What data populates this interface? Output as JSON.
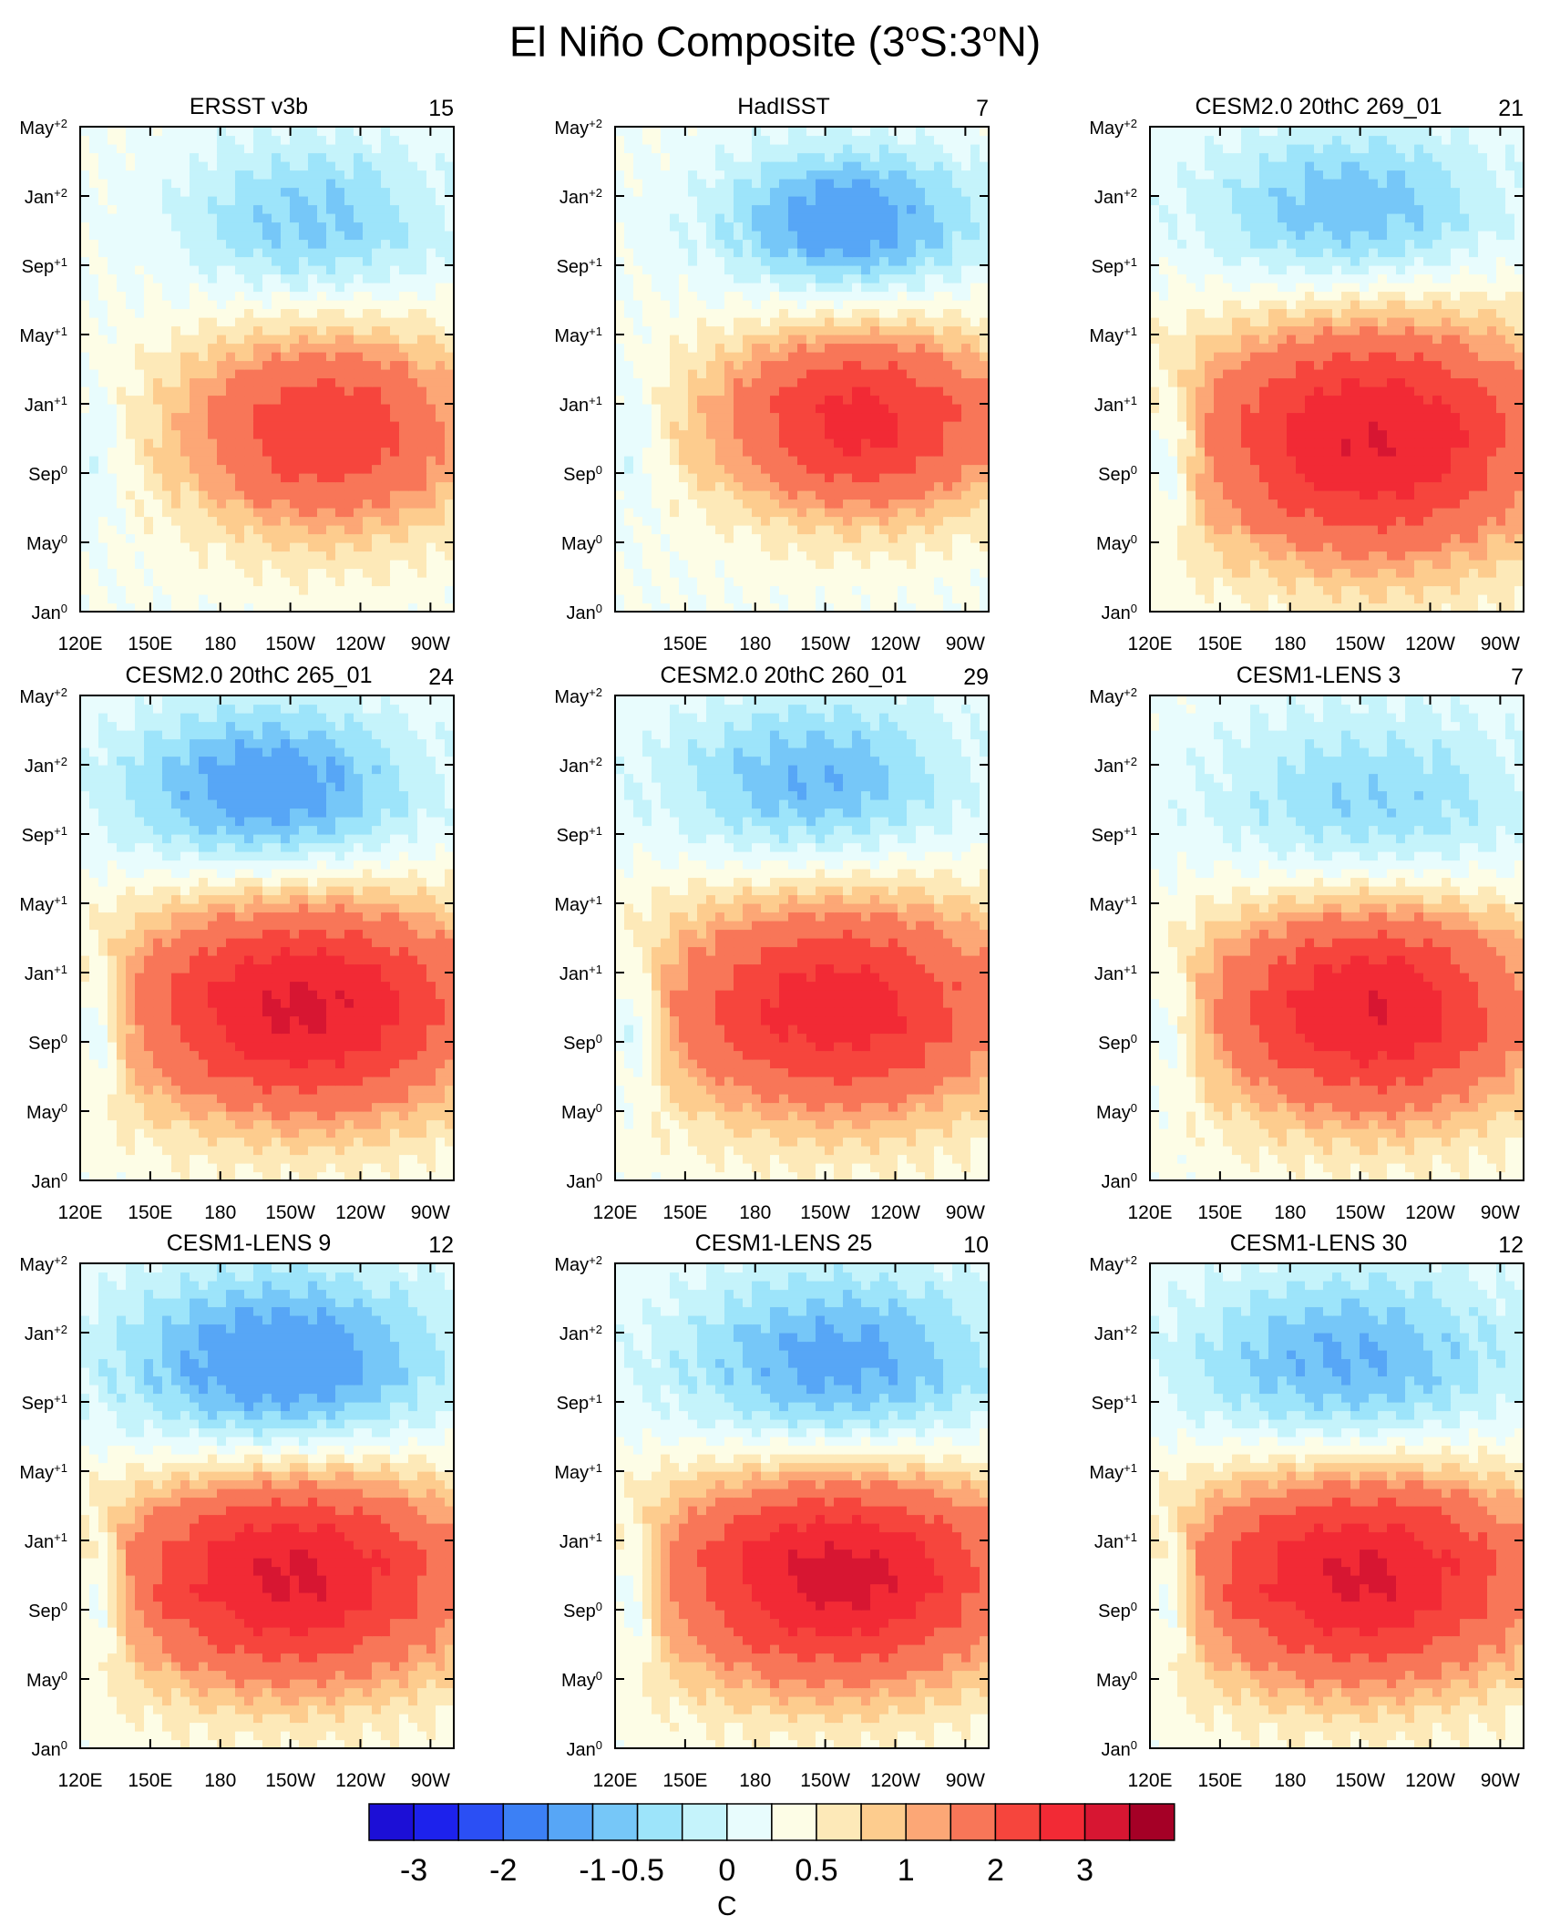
{
  "title": {
    "prefix": "El Niño Composite (3",
    "deg1": "o",
    "mid": "S:3",
    "deg2": "o",
    "suffix": "N)"
  },
  "chart_data": {
    "type": "heatmap",
    "x_tick_labels": [
      "120E",
      "150E",
      "180",
      "150W",
      "120W",
      "90W"
    ],
    "x_tick_degrees_east": [
      120,
      150,
      180,
      210,
      240,
      270
    ],
    "x_range_degrees_east": [
      120,
      280
    ],
    "y_ticks": [
      {
        "month": "Jan",
        "sup": "0"
      },
      {
        "month": "May",
        "sup": "0"
      },
      {
        "month": "Sep",
        "sup": "0"
      },
      {
        "month": "Jan",
        "sup": "+1"
      },
      {
        "month": "May",
        "sup": "+1"
      },
      {
        "month": "Sep",
        "sup": "+1"
      },
      {
        "month": "Jan",
        "sup": "+2"
      },
      {
        "month": "May",
        "sup": "+2"
      }
    ],
    "y_range_months": [
      0,
      28
    ],
    "panels": [
      {
        "name": "ERSST v3b",
        "count": "15",
        "show_120E": true,
        "warm": {
          "amp": 1.9,
          "lon": 225,
          "month": 10.5,
          "sx": 45,
          "sy": 4.2
        },
        "cold": {
          "amp": -0.85,
          "lon": 220,
          "month": 22.5,
          "sx": 40,
          "sy": 3.5
        },
        "west": {
          "amp": -0.35,
          "month": 9
        }
      },
      {
        "name": "HadISST",
        "count": "7",
        "show_120E": false,
        "warm": {
          "amp": 2.2,
          "lon": 225,
          "month": 11,
          "sx": 45,
          "sy": 3.8
        },
        "cold": {
          "amp": -1.3,
          "lon": 220,
          "month": 22.5,
          "sx": 38,
          "sy": 3.0
        },
        "west": {
          "amp": -0.4,
          "month": 10
        }
      },
      {
        "name": "CESM2.0 20thC 269_01",
        "count": "21",
        "show_120E": true,
        "warm": {
          "amp": 2.5,
          "lon": 215,
          "month": 10,
          "sx": 55,
          "sy": 5.0
        },
        "cold": {
          "amp": -1.0,
          "lon": 205,
          "month": 23,
          "sx": 45,
          "sy": 3.5
        },
        "west": {
          "amp": -0.8,
          "month": 9
        }
      },
      {
        "name": "CESM2.0 20thC 265_01",
        "count": "24",
        "show_120E": true,
        "warm": {
          "amp": 2.6,
          "lon": 215,
          "month": 10,
          "sx": 55,
          "sy": 4.5
        },
        "cold": {
          "amp": -1.3,
          "lon": 200,
          "month": 22.5,
          "sx": 45,
          "sy": 3.5
        },
        "west": {
          "amp": -0.8,
          "month": 9
        }
      },
      {
        "name": "CESM2.0 20thC 260_01",
        "count": "29",
        "show_120E": true,
        "warm": {
          "amp": 2.3,
          "lon": 215,
          "month": 10,
          "sx": 55,
          "sy": 4.5
        },
        "cold": {
          "amp": -1.0,
          "lon": 205,
          "month": 23,
          "sx": 45,
          "sy": 3.5
        },
        "west": {
          "amp": -0.8,
          "month": 9
        }
      },
      {
        "name": "CESM1-LENS 3",
        "count": "7",
        "show_120E": true,
        "warm": {
          "amp": 2.5,
          "lon": 215,
          "month": 10,
          "sx": 50,
          "sy": 4.5
        },
        "cold": {
          "amp": -0.8,
          "lon": 215,
          "month": 21.5,
          "sx": 50,
          "sy": 4.0
        },
        "west": {
          "amp": -0.6,
          "month": 9
        }
      },
      {
        "name": "CESM1-LENS 9",
        "count": "12",
        "show_120E": true,
        "warm": {
          "amp": 2.6,
          "lon": 210,
          "month": 10,
          "sx": 55,
          "sy": 4.5
        },
        "cold": {
          "amp": -1.4,
          "lon": 205,
          "month": 22,
          "sx": 50,
          "sy": 4.0
        },
        "west": {
          "amp": -0.8,
          "month": 9
        }
      },
      {
        "name": "CESM1-LENS 25",
        "count": "10",
        "show_120E": true,
        "warm": {
          "amp": 2.7,
          "lon": 215,
          "month": 10,
          "sx": 55,
          "sy": 4.5
        },
        "cold": {
          "amp": -1.2,
          "lon": 215,
          "month": 22,
          "sx": 50,
          "sy": 4.0
        },
        "west": {
          "amp": -0.8,
          "month": 9
        }
      },
      {
        "name": "CESM1-LENS 30",
        "count": "12",
        "show_120E": true,
        "warm": {
          "amp": 2.6,
          "lon": 210,
          "month": 10,
          "sx": 55,
          "sy": 4.5
        },
        "cold": {
          "amp": -1.1,
          "lon": 205,
          "month": 22,
          "sx": 50,
          "sy": 4.0
        },
        "west": {
          "amp": -0.8,
          "month": 9
        }
      }
    ],
    "contour_levels": [
      -3,
      -2.5,
      -2,
      -1.5,
      -1,
      -0.75,
      -0.5,
      -0.25,
      0,
      0.25,
      0.5,
      0.75,
      1,
      1.5,
      2,
      2.5,
      3
    ],
    "colors": [
      "#1c0fd6",
      "#1d22ec",
      "#2b4ff4",
      "#3c80f5",
      "#57a6f6",
      "#76c7f8",
      "#9de4fa",
      "#c5f3fb",
      "#e8fcfd",
      "#fdfde6",
      "#fde9b8",
      "#fdcc8e",
      "#fca776",
      "#f87658",
      "#f6453d",
      "#f22a35",
      "#d71632",
      "#a50026"
    ],
    "colorbar_labels": [
      "-3",
      "-2",
      "-1",
      "-0.5",
      "0",
      "0.5",
      "1",
      "2",
      "3"
    ],
    "colorbar_label_boundaries": [
      1,
      3,
      5,
      6,
      8,
      10,
      12,
      14,
      16
    ],
    "colorbar_units": "C"
  }
}
